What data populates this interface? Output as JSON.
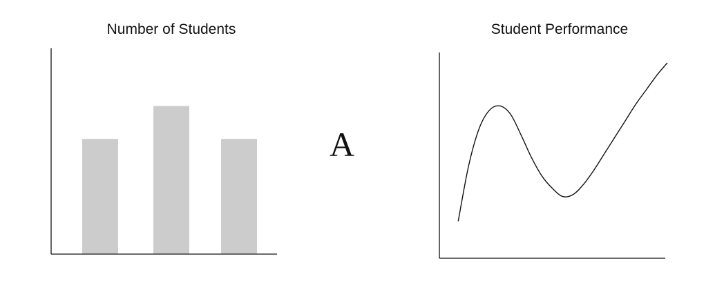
{
  "panel_letter": "A",
  "chart_data": [
    {
      "type": "bar",
      "title": "Number of Students",
      "xlabel": "",
      "ylabel": "",
      "categories": [
        "",
        "",
        ""
      ],
      "values": [
        5.6,
        7.2,
        5.6
      ],
      "ylim": [
        0,
        10
      ],
      "grid": false,
      "bar_color": "#cccccc",
      "axis_color": "#111111"
    },
    {
      "type": "line",
      "title": "Student Performance",
      "xlabel": "",
      "ylabel": "",
      "x": [
        0,
        0.5,
        1,
        1.5,
        2,
        2.5,
        3,
        3.5,
        4,
        4.5,
        5,
        5.5,
        6,
        6.5,
        7,
        7.5,
        8,
        8.5,
        9,
        9.5,
        10
      ],
      "y": [
        1.8,
        4.5,
        6.3,
        7.2,
        7.4,
        7.0,
        6.0,
        4.9,
        4.0,
        3.4,
        3.0,
        3.1,
        3.6,
        4.3,
        5.1,
        5.9,
        6.7,
        7.5,
        8.2,
        8.9,
        9.5
      ],
      "xlim": [
        -0.9,
        9.9
      ],
      "ylim": [
        0,
        10
      ],
      "grid": false,
      "line_color": "#111111",
      "axis_color": "#111111"
    }
  ]
}
